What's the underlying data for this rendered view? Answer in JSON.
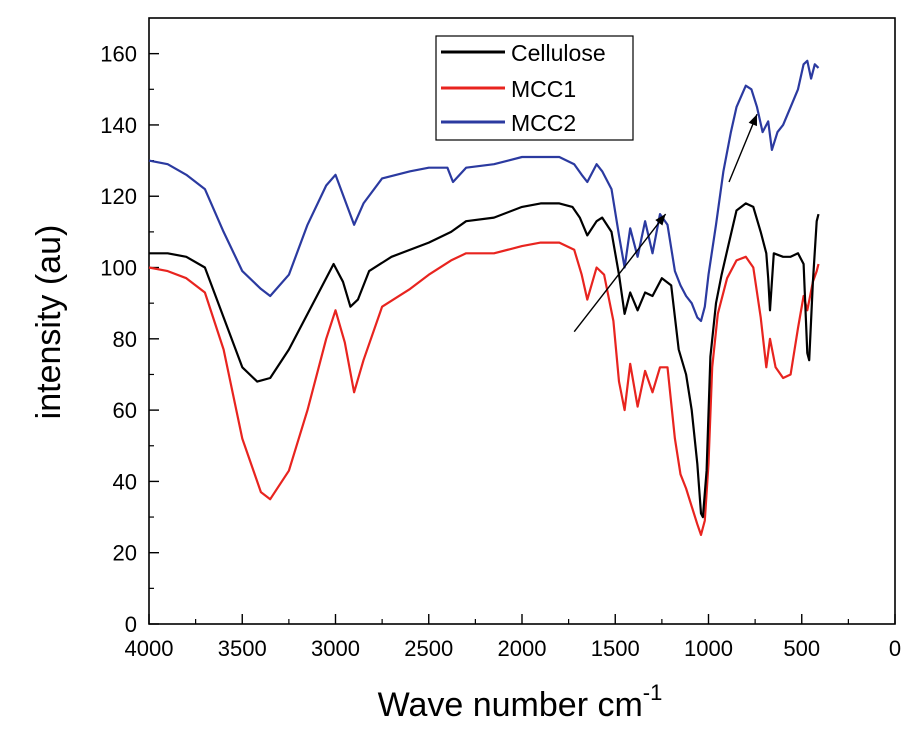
{
  "chart_data": {
    "type": "line",
    "title": "",
    "xlabel": "Wave number cm",
    "xlabel_superscript": "-1",
    "ylabel": "intensity (au)",
    "xlim": [
      4000,
      0
    ],
    "ylim": [
      0,
      170
    ],
    "x_ticks": [
      4000,
      3500,
      3000,
      2500,
      2000,
      1500,
      1000,
      500,
      0
    ],
    "y_ticks": [
      0,
      20,
      40,
      60,
      80,
      100,
      120,
      140,
      160
    ],
    "grid": false,
    "legend_position": "top-center",
    "series": [
      {
        "name": "Cellulose",
        "color": "#000000",
        "points": [
          [
            4000,
            104
          ],
          [
            3900,
            104
          ],
          [
            3800,
            103
          ],
          [
            3700,
            100
          ],
          [
            3600,
            86
          ],
          [
            3500,
            72
          ],
          [
            3420,
            68
          ],
          [
            3350,
            69
          ],
          [
            3250,
            77
          ],
          [
            3100,
            92
          ],
          [
            3010,
            101
          ],
          [
            2960,
            96
          ],
          [
            2920,
            89
          ],
          [
            2880,
            91
          ],
          [
            2820,
            99
          ],
          [
            2700,
            103
          ],
          [
            2500,
            107
          ],
          [
            2380,
            110
          ],
          [
            2300,
            113
          ],
          [
            2150,
            114
          ],
          [
            2000,
            117
          ],
          [
            1900,
            118
          ],
          [
            1800,
            118
          ],
          [
            1730,
            117
          ],
          [
            1690,
            114
          ],
          [
            1650,
            109
          ],
          [
            1600,
            113
          ],
          [
            1570,
            114
          ],
          [
            1520,
            110
          ],
          [
            1480,
            98
          ],
          [
            1450,
            87
          ],
          [
            1420,
            93
          ],
          [
            1380,
            88
          ],
          [
            1340,
            93
          ],
          [
            1300,
            92
          ],
          [
            1250,
            97
          ],
          [
            1200,
            95
          ],
          [
            1160,
            77
          ],
          [
            1120,
            70
          ],
          [
            1090,
            60
          ],
          [
            1060,
            45
          ],
          [
            1040,
            31
          ],
          [
            1030,
            30
          ],
          [
            1010,
            43
          ],
          [
            990,
            75
          ],
          [
            960,
            90
          ],
          [
            930,
            98
          ],
          [
            890,
            107
          ],
          [
            850,
            116
          ],
          [
            800,
            118
          ],
          [
            760,
            117
          ],
          [
            720,
            110
          ],
          [
            690,
            104
          ],
          [
            680,
            97
          ],
          [
            670,
            88
          ],
          [
            650,
            104
          ],
          [
            600,
            103
          ],
          [
            560,
            103
          ],
          [
            520,
            104
          ],
          [
            490,
            101
          ],
          [
            470,
            76
          ],
          [
            460,
            74
          ],
          [
            440,
            96
          ],
          [
            420,
            113
          ],
          [
            410,
            115
          ]
        ]
      },
      {
        "name": "MCC1",
        "color": "#e8241f",
        "points": [
          [
            4000,
            100
          ],
          [
            3900,
            99
          ],
          [
            3800,
            97
          ],
          [
            3700,
            93
          ],
          [
            3600,
            77
          ],
          [
            3500,
            52
          ],
          [
            3400,
            37
          ],
          [
            3350,
            35
          ],
          [
            3250,
            43
          ],
          [
            3150,
            60
          ],
          [
            3050,
            80
          ],
          [
            3000,
            88
          ],
          [
            2950,
            79
          ],
          [
            2900,
            65
          ],
          [
            2850,
            74
          ],
          [
            2750,
            89
          ],
          [
            2600,
            94
          ],
          [
            2500,
            98
          ],
          [
            2380,
            102
          ],
          [
            2300,
            104
          ],
          [
            2150,
            104
          ],
          [
            2000,
            106
          ],
          [
            1900,
            107
          ],
          [
            1800,
            107
          ],
          [
            1720,
            105
          ],
          [
            1680,
            98
          ],
          [
            1650,
            91
          ],
          [
            1600,
            100
          ],
          [
            1560,
            98
          ],
          [
            1510,
            85
          ],
          [
            1480,
            68
          ],
          [
            1450,
            60
          ],
          [
            1420,
            73
          ],
          [
            1380,
            61
          ],
          [
            1340,
            71
          ],
          [
            1300,
            65
          ],
          [
            1260,
            72
          ],
          [
            1220,
            72
          ],
          [
            1180,
            52
          ],
          [
            1150,
            42
          ],
          [
            1120,
            38
          ],
          [
            1090,
            33
          ],
          [
            1060,
            28
          ],
          [
            1040,
            25
          ],
          [
            1020,
            29
          ],
          [
            1000,
            45
          ],
          [
            980,
            72
          ],
          [
            950,
            87
          ],
          [
            900,
            97
          ],
          [
            850,
            102
          ],
          [
            800,
            103
          ],
          [
            760,
            100
          ],
          [
            720,
            86
          ],
          [
            690,
            72
          ],
          [
            670,
            80
          ],
          [
            640,
            72
          ],
          [
            600,
            69
          ],
          [
            560,
            70
          ],
          [
            520,
            83
          ],
          [
            490,
            92
          ],
          [
            470,
            88
          ],
          [
            440,
            96
          ],
          [
            420,
            99
          ],
          [
            410,
            101
          ]
        ]
      },
      {
        "name": "MCC2",
        "color": "#2b3aa0",
        "points": [
          [
            4000,
            130
          ],
          [
            3900,
            129
          ],
          [
            3800,
            126
          ],
          [
            3700,
            122
          ],
          [
            3600,
            110
          ],
          [
            3500,
            99
          ],
          [
            3400,
            94
          ],
          [
            3350,
            92
          ],
          [
            3250,
            98
          ],
          [
            3150,
            112
          ],
          [
            3050,
            123
          ],
          [
            3000,
            126
          ],
          [
            2950,
            119
          ],
          [
            2900,
            112
          ],
          [
            2850,
            118
          ],
          [
            2750,
            125
          ],
          [
            2600,
            127
          ],
          [
            2500,
            128
          ],
          [
            2400,
            128
          ],
          [
            2370,
            124
          ],
          [
            2300,
            128
          ],
          [
            2150,
            129
          ],
          [
            2000,
            131
          ],
          [
            1900,
            131
          ],
          [
            1800,
            131
          ],
          [
            1720,
            129
          ],
          [
            1680,
            126
          ],
          [
            1650,
            124
          ],
          [
            1600,
            129
          ],
          [
            1570,
            127
          ],
          [
            1520,
            122
          ],
          [
            1480,
            109
          ],
          [
            1450,
            100
          ],
          [
            1420,
            111
          ],
          [
            1380,
            103
          ],
          [
            1340,
            113
          ],
          [
            1300,
            104
          ],
          [
            1260,
            115
          ],
          [
            1220,
            112
          ],
          [
            1180,
            99
          ],
          [
            1150,
            95
          ],
          [
            1120,
            92
          ],
          [
            1090,
            90
          ],
          [
            1060,
            86
          ],
          [
            1040,
            85
          ],
          [
            1020,
            89
          ],
          [
            1000,
            98
          ],
          [
            960,
            112
          ],
          [
            920,
            127
          ],
          [
            880,
            138
          ],
          [
            850,
            145
          ],
          [
            800,
            151
          ],
          [
            770,
            150
          ],
          [
            740,
            145
          ],
          [
            710,
            138
          ],
          [
            680,
            141
          ],
          [
            660,
            133
          ],
          [
            630,
            138
          ],
          [
            600,
            140
          ],
          [
            560,
            145
          ],
          [
            520,
            150
          ],
          [
            490,
            157
          ],
          [
            470,
            158
          ],
          [
            450,
            153
          ],
          [
            430,
            157
          ],
          [
            410,
            156
          ]
        ]
      }
    ],
    "annotations": [
      {
        "type": "arrow",
        "from": [
          1720,
          82
        ],
        "to": [
          1230,
          115
        ]
      },
      {
        "type": "arrow",
        "from": [
          890,
          124
        ],
        "to": [
          740,
          143
        ]
      }
    ]
  }
}
